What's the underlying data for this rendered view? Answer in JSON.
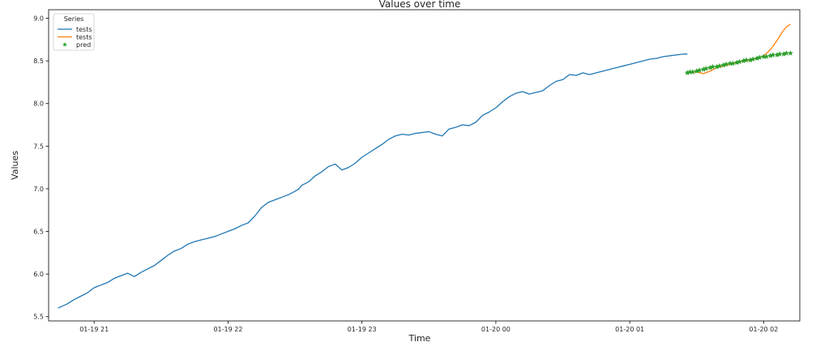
{
  "chart_data": {
    "type": "line",
    "title": "Values over time",
    "xlabel": "Time",
    "ylabel": "Values",
    "x_tick_labels": [
      "01-19 21",
      "01-19 22",
      "01-19 23",
      "01-20 00",
      "01-20 01",
      "01-20 02"
    ],
    "y_tick_labels": [
      "5.5",
      "6.0",
      "6.5",
      "7.0",
      "7.5",
      "8.0",
      "8.5",
      "9.0"
    ],
    "x_ticks_hours": [
      21,
      22,
      23,
      24,
      25,
      26
    ],
    "y_ticks": [
      5.5,
      6.0,
      6.5,
      7.0,
      7.5,
      8.0,
      8.5,
      9.0
    ],
    "xlim_hours": [
      20.66,
      26.27
    ],
    "ylim": [
      5.45,
      9.1
    ],
    "grid": false,
    "legend": {
      "title": "Series",
      "placement": "top-left",
      "entries": [
        {
          "label": "tests",
          "color": "#1f77b4",
          "marker": "line"
        },
        {
          "label": "tests",
          "color": "#ff7f0e",
          "marker": "line"
        },
        {
          "label": "pred",
          "color": "#2ca02c",
          "marker": "star"
        }
      ]
    },
    "series": [
      {
        "color": "#1f77b4",
        "x_hours": [
          20.73,
          20.8,
          20.85,
          20.9,
          20.95,
          21.0,
          21.05,
          21.1,
          21.15,
          21.2,
          21.25,
          21.3,
          21.35,
          21.4,
          21.45,
          21.5,
          21.55,
          21.6,
          21.65,
          21.7,
          21.75,
          21.8,
          21.85,
          21.9,
          21.95,
          22.0,
          22.05,
          22.1,
          22.15,
          22.2,
          22.25,
          22.3,
          22.35,
          22.4,
          22.45,
          22.5,
          22.53,
          22.55,
          22.6,
          22.65,
          22.7,
          22.75,
          22.8,
          22.85,
          22.9,
          22.95,
          23.0,
          23.05,
          23.1,
          23.15,
          23.2,
          23.25,
          23.3,
          23.35,
          23.4,
          23.45,
          23.5,
          23.55,
          23.6,
          23.65,
          23.7,
          23.75,
          23.8,
          23.85,
          23.9,
          23.95,
          24.0,
          24.05,
          24.1,
          24.15,
          24.2,
          24.25,
          24.3,
          24.35,
          24.4,
          24.45,
          24.5,
          24.55,
          24.6,
          24.65,
          24.7,
          24.75,
          24.8,
          24.85,
          24.9,
          24.95,
          25.0,
          25.05,
          25.1,
          25.15,
          25.2,
          25.25,
          25.3,
          25.35,
          25.4,
          25.43
        ],
        "values": [
          5.6,
          5.65,
          5.7,
          5.74,
          5.78,
          5.84,
          5.87,
          5.9,
          5.95,
          5.98,
          6.01,
          5.97,
          6.02,
          6.06,
          6.1,
          6.16,
          6.22,
          6.27,
          6.3,
          6.35,
          6.38,
          6.4,
          6.42,
          6.44,
          6.47,
          6.5,
          6.53,
          6.57,
          6.6,
          6.68,
          6.78,
          6.84,
          6.87,
          6.9,
          6.93,
          6.97,
          7.0,
          7.04,
          7.08,
          7.15,
          7.2,
          7.26,
          7.29,
          7.22,
          7.25,
          7.3,
          7.37,
          7.42,
          7.47,
          7.52,
          7.58,
          7.62,
          7.64,
          7.63,
          7.65,
          7.66,
          7.67,
          7.64,
          7.62,
          7.7,
          7.72,
          7.75,
          7.74,
          7.78,
          7.86,
          7.9,
          7.95,
          8.02,
          8.08,
          8.12,
          8.14,
          8.11,
          8.13,
          8.15,
          8.21,
          8.26,
          8.28,
          8.34,
          8.33,
          8.36,
          8.34,
          8.36,
          8.38,
          8.4,
          8.42,
          8.44,
          8.46,
          8.48,
          8.5,
          8.52,
          8.53,
          8.55,
          8.56,
          8.57,
          8.58,
          8.58
        ]
      },
      {
        "color": "#ff7f0e",
        "x_hours": [
          25.43,
          25.5,
          25.55,
          25.6,
          25.65,
          25.7,
          25.75,
          25.8,
          25.85,
          25.9,
          25.95,
          26.0,
          26.03,
          26.06,
          26.1,
          26.14,
          26.17,
          26.2
        ],
        "values": [
          8.36,
          8.37,
          8.35,
          8.38,
          8.42,
          8.44,
          8.46,
          8.48,
          8.5,
          8.51,
          8.53,
          8.56,
          8.6,
          8.65,
          8.74,
          8.84,
          8.9,
          8.93
        ]
      },
      {
        "color": "#2ca02c",
        "marker": "star",
        "x_hours": [
          25.43,
          25.45,
          25.47,
          25.5,
          25.52,
          25.55,
          25.57,
          25.6,
          25.62,
          25.65,
          25.67,
          25.7,
          25.72,
          25.75,
          25.77,
          25.8,
          25.82,
          25.85,
          25.87,
          25.9,
          25.92,
          25.95,
          25.97,
          26.0,
          26.02,
          26.05,
          26.07,
          26.1,
          26.12,
          26.15,
          26.17,
          26.2
        ],
        "values": [
          8.36,
          8.37,
          8.37,
          8.38,
          8.39,
          8.4,
          8.41,
          8.42,
          8.43,
          8.43,
          8.44,
          8.45,
          8.46,
          8.47,
          8.47,
          8.48,
          8.49,
          8.5,
          8.51,
          8.51,
          8.52,
          8.53,
          8.54,
          8.55,
          8.55,
          8.56,
          8.57,
          8.57,
          8.58,
          8.58,
          8.59,
          8.59
        ]
      }
    ]
  }
}
